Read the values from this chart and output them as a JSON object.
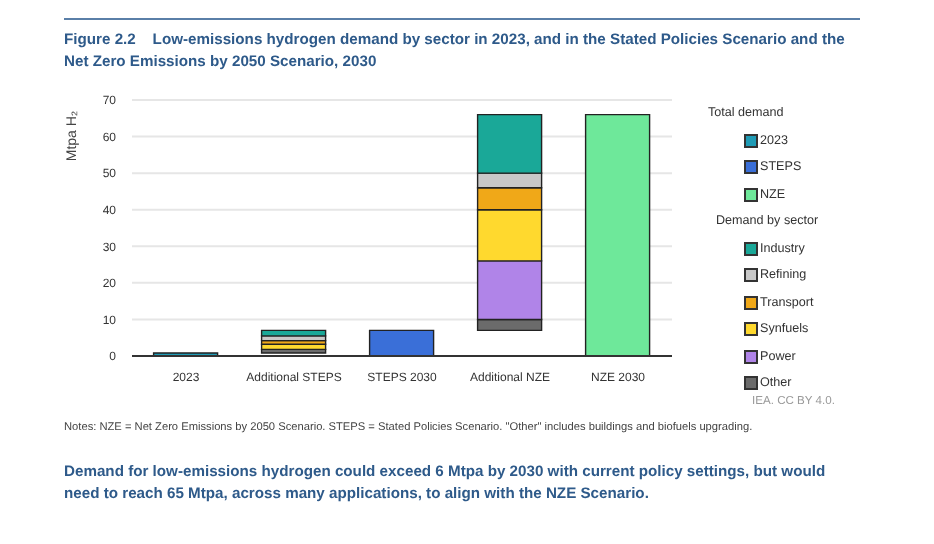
{
  "chart_data": {
    "type": "bar",
    "title": "Figure 2.2    Low-emissions hydrogen demand by sector in 2023, and in the Stated Policies Scenario and the Net Zero Emissions by 2050 Scenario, 2030",
    "ylabel": "Mtpa H₂",
    "legend_title": "Total demand",
    "categories": [
      "2023",
      "Additional STEPS",
      "STEPS 2030",
      "Additional NZE",
      "NZE 2030"
    ],
    "series": [
      {
        "name": "2023",
        "color": "#1f9bb5",
        "values": [
          0.8,
          null,
          null,
          null,
          null
        ]
      },
      {
        "name": "STEPS",
        "color": "#3a6fd8",
        "values": [
          null,
          null,
          7,
          null,
          null
        ]
      },
      {
        "name": "NZE",
        "color": "#6ee89a",
        "values": [
          null,
          null,
          null,
          null,
          66
        ]
      },
      {
        "name": "Other",
        "color": "#6b6b6b",
        "values": [
          null,
          1.0,
          null,
          3,
          null
        ],
        "base": [
          null,
          0.8,
          null,
          7,
          null
        ]
      },
      {
        "name": "Power",
        "color": "#b084e8",
        "values": [
          null,
          null,
          null,
          16,
          null
        ],
        "base": [
          null,
          null,
          null,
          10,
          null
        ]
      },
      {
        "name": "Synfuels",
        "color": "#ffd92e",
        "values": [
          null,
          1.4,
          null,
          14,
          null
        ],
        "base": [
          null,
          1.8,
          null,
          26,
          null
        ]
      },
      {
        "name": "Transport",
        "color": "#f0a818",
        "values": [
          null,
          1.0,
          null,
          6,
          null
        ],
        "base": [
          null,
          3.2,
          null,
          40,
          null
        ]
      },
      {
        "name": "Refining",
        "color": "#c8c8c8",
        "values": [
          null,
          1.3,
          null,
          4,
          null
        ],
        "base": [
          null,
          4.2,
          null,
          46,
          null
        ]
      },
      {
        "name": "Industry",
        "color": "#1aa898",
        "values": [
          null,
          1.5,
          null,
          16,
          null
        ],
        "base": [
          null,
          5.5,
          null,
          50,
          null
        ]
      }
    ],
    "ylim": [
      0,
      70
    ],
    "yticks": [
      0,
      10,
      20,
      30,
      40,
      50,
      60,
      70
    ],
    "grid": "y",
    "legend": "right",
    "annotations": [
      "Demand by sector",
      "IEA. CC BY 4.0.",
      "Notes: NZE = Net Zero Emissions by 2050 Scenario. STEPS = Stated Policies Scenario. \"Other\" includes buildings and biofuels upgrading.",
      "Demand for low-emissions hydrogen could exceed 6 Mtpa by 2030 with current policy settings, but would need to reach 65 Mtpa, across many applications, to align with the NZE Scenario."
    ]
  }
}
